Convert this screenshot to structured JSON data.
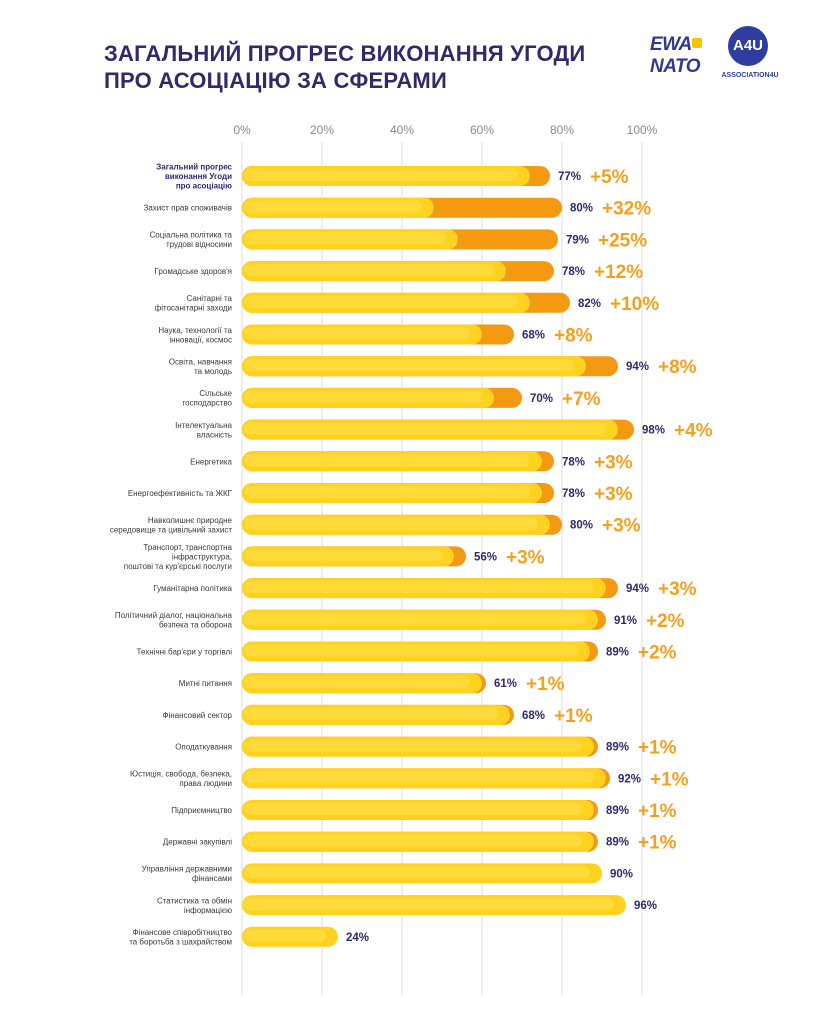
{
  "title_lines": [
    "ЗАГАЛЬНИЙ ПРОГРЕС ВИКОНАННЯ УГОДИ",
    "ПРО АСОЦІАЦІЮ ЗА СФЕРАМИ"
  ],
  "logos": {
    "ewa_line1": "EWA",
    "ewa_line2": "NATO",
    "a4u_mark": "A4U",
    "a4u_text": "ASSOCIATION4U"
  },
  "colors": {
    "base": "#ffd21f",
    "base_highlight": "#ffe04d",
    "increment": "#f39a12",
    "grid": "#dcdcdc",
    "value_text": "#2e2a6b",
    "change_text": "#f2a020"
  },
  "chart_data": {
    "type": "bar",
    "orientation": "horizontal",
    "stacked": true,
    "title": "ЗАГАЛЬНИЙ ПРОГРЕС ВИКОНАННЯ УГОДИ ПРО АСОЦІАЦІЮ ЗА СФЕРАМИ",
    "xlim": [
      0,
      100
    ],
    "x_ticks": [
      "0%",
      "20%",
      "40%",
      "60%",
      "80%",
      "100%"
    ],
    "grid": true,
    "categories": [
      [
        "Загальний прогрес",
        "виконання Угоди",
        "про асоціацію"
      ],
      [
        "Захист прав споживачів"
      ],
      [
        "Соціальна політика та",
        "трудові відносини"
      ],
      [
        "Громадське здоров'я"
      ],
      [
        "Санітарні та",
        "фітосанітарні заходи"
      ],
      [
        "Наука, технології та",
        "інновації, космос"
      ],
      [
        "Освіта, навчання",
        "та молодь"
      ],
      [
        "Сільське",
        "господарство"
      ],
      [
        "Інтелектуальна",
        "власність"
      ],
      [
        "Енергетика"
      ],
      [
        "Енергоефективність та ЖКГ"
      ],
      [
        "Навколишнє природне",
        "середовище та цивільний захист"
      ],
      [
        "Транспорт, транспортна",
        "інфраструктура,",
        "поштові та кур'єрські послуги"
      ],
      [
        "Гуманітарна політика"
      ],
      [
        "Політичний діалог, національна",
        "безпека та оборона"
      ],
      [
        "Технічні бар'єри у торгівлі"
      ],
      [
        "Митні питання"
      ],
      [
        "Фінансовий сектор"
      ],
      [
        "Оподаткування"
      ],
      [
        "Юстиція, свобода, безпека,",
        "права людини"
      ],
      [
        "Підприємництво"
      ],
      [
        "Державні закупівлі"
      ],
      [
        "Управління державними",
        "фінансами"
      ],
      [
        "Статистика та обмін",
        "інформацією"
      ],
      [
        "Фінансове співробітництво",
        "та боротьба з шахрайством"
      ]
    ],
    "series": [
      {
        "name": "",
        "values": [
          72,
          48,
          54,
          66,
          72,
          60,
          86,
          63,
          94,
          75,
          75,
          77,
          53,
          91,
          89,
          87,
          60,
          67,
          88,
          91,
          88,
          88,
          90,
          96,
          24
        ]
      },
      {
        "name": "",
        "values": [
          5,
          32,
          25,
          12,
          10,
          8,
          8,
          7,
          4,
          3,
          3,
          3,
          3,
          3,
          2,
          2,
          1,
          1,
          1,
          1,
          1,
          1,
          0,
          0,
          0
        ]
      }
    ],
    "value_labels": [
      "77%",
      "80%",
      "79%",
      "78%",
      "82%",
      "68%",
      "94%",
      "70%",
      "98%",
      "78%",
      "78%",
      "80%",
      "56%",
      "94%",
      "91%",
      "89%",
      "61%",
      "68%",
      "89%",
      "92%",
      "89%",
      "89%",
      "90%",
      "96%",
      "24%"
    ],
    "change_labels": [
      "+5%",
      "+32%",
      "+25%",
      "+12%",
      "+10%",
      "+8%",
      "+8%",
      "+7%",
      "+4%",
      "+3%",
      "+3%",
      "+3%",
      "+3%",
      "+3%",
      "+2%",
      "+2%",
      "+1%",
      "+1%",
      "+1%",
      "+1%",
      "+1%",
      "+1%",
      "",
      "",
      ""
    ]
  }
}
